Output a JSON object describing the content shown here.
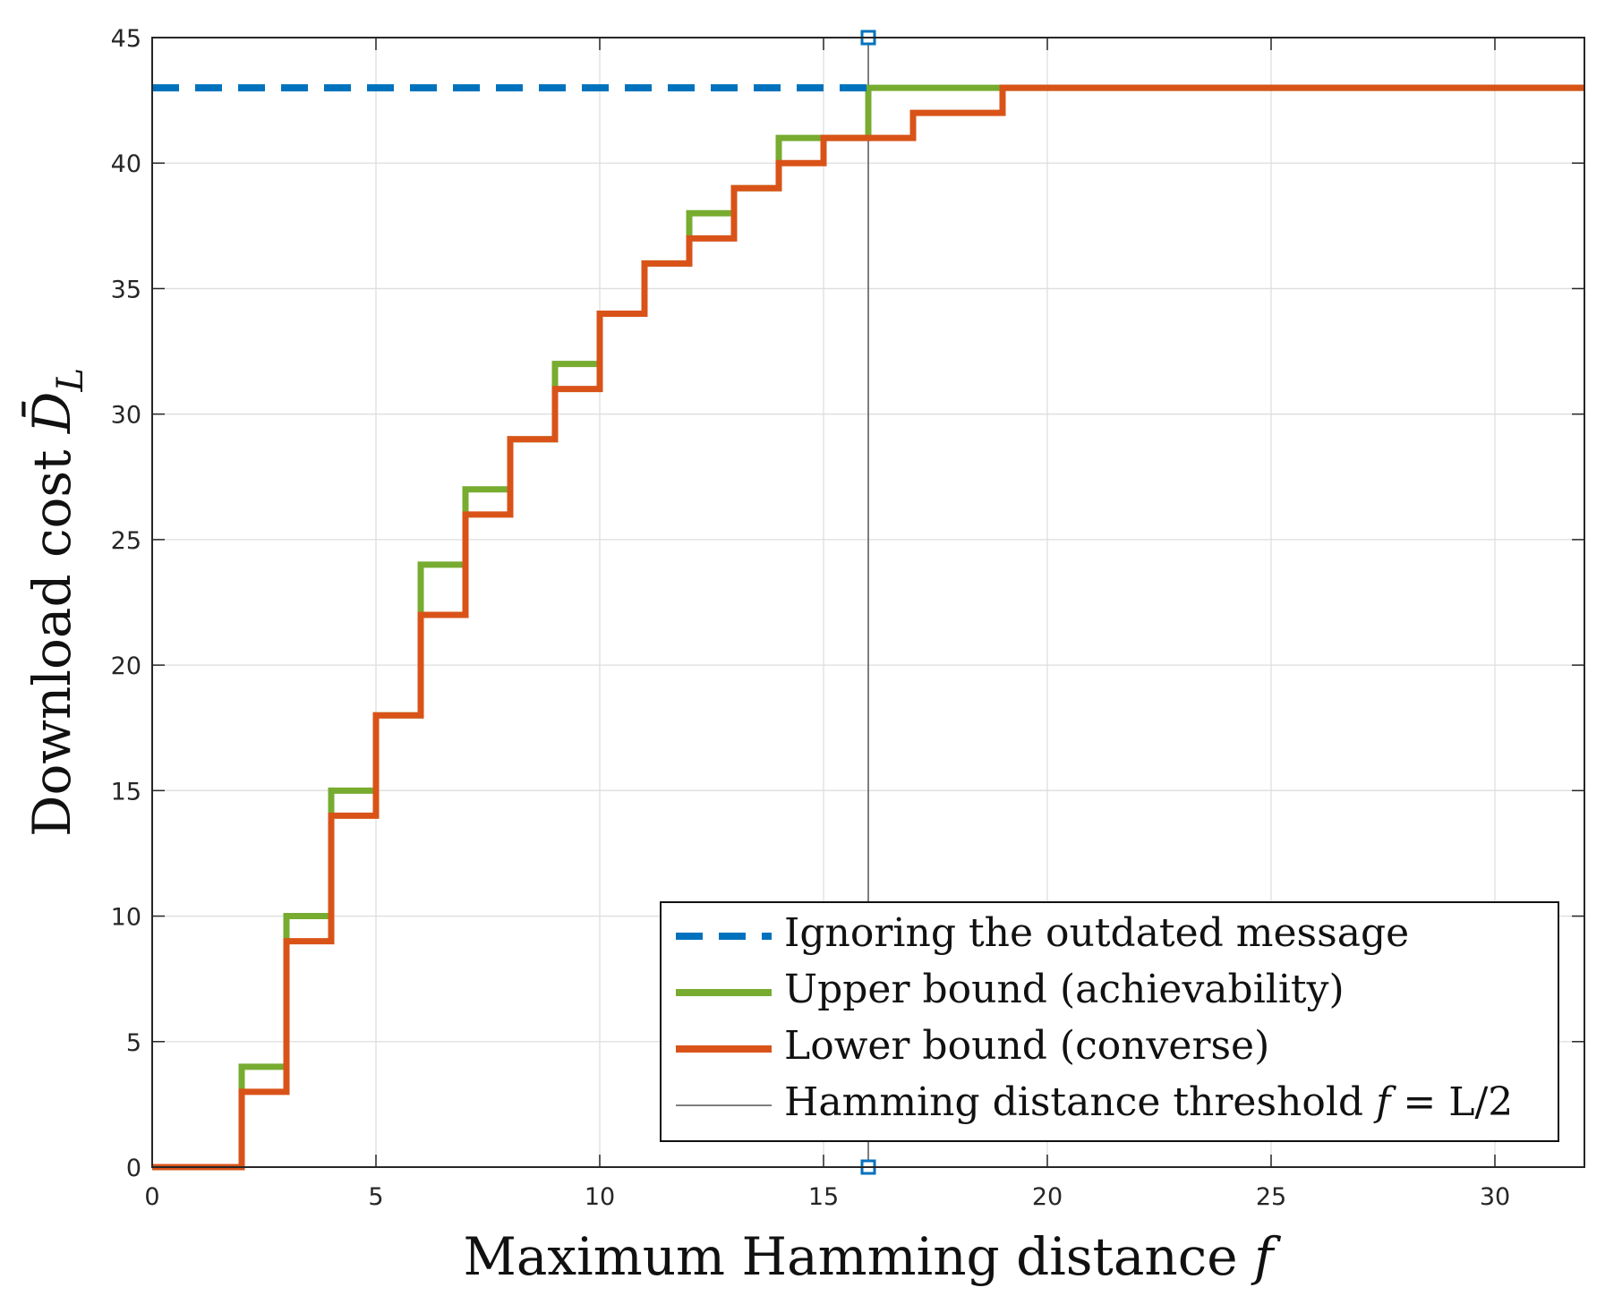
{
  "chart_data": {
    "type": "line",
    "xlabel": "Maximum Hamming distance",
    "xlabel_var": "f",
    "ylabel": "Download cost",
    "ylabel_var": "D̄",
    "ylabel_sub": "L",
    "xlim": [
      0,
      32
    ],
    "ylim": [
      0,
      45
    ],
    "xticks": [
      0,
      5,
      10,
      15,
      20,
      25,
      30
    ],
    "yticks": [
      0,
      5,
      10,
      15,
      20,
      25,
      30,
      35,
      40,
      45
    ],
    "grid": true,
    "legend_position": "bottom-right",
    "series": [
      {
        "name": "Ignoring the outdated message",
        "style": "dashed",
        "color": "#0072BD",
        "x": [
          0,
          16
        ],
        "y": [
          43,
          43
        ]
      },
      {
        "name": "Upper bound (achievability)",
        "style": "stairs",
        "color": "#77AC30",
        "x": [
          0,
          2,
          3,
          4,
          5,
          6,
          7,
          8,
          9,
          10,
          11,
          12,
          13,
          14,
          15,
          16,
          17,
          18,
          19,
          32
        ],
        "y": [
          0,
          4,
          10,
          15,
          18,
          24,
          27,
          29,
          32,
          34,
          36,
          38,
          39,
          41,
          41,
          43,
          43,
          43,
          43,
          43
        ]
      },
      {
        "name": "Lower bound (converse)",
        "style": "stairs",
        "color": "#D95319",
        "x": [
          0,
          2,
          3,
          4,
          5,
          6,
          7,
          8,
          9,
          10,
          11,
          12,
          13,
          14,
          15,
          16,
          17,
          18,
          19,
          32
        ],
        "y": [
          0,
          3,
          9,
          14,
          18,
          22,
          26,
          29,
          31,
          34,
          36,
          37,
          39,
          40,
          41,
          41,
          42,
          42,
          43,
          43
        ]
      },
      {
        "name": "Hamming distance threshold",
        "legend_math_lhs": "f",
        "legend_math_rhs": " = L/2",
        "style": "vertical-line",
        "color": "#555555",
        "x": [
          16,
          16
        ],
        "y": [
          0,
          45
        ],
        "marker": "square"
      }
    ]
  }
}
